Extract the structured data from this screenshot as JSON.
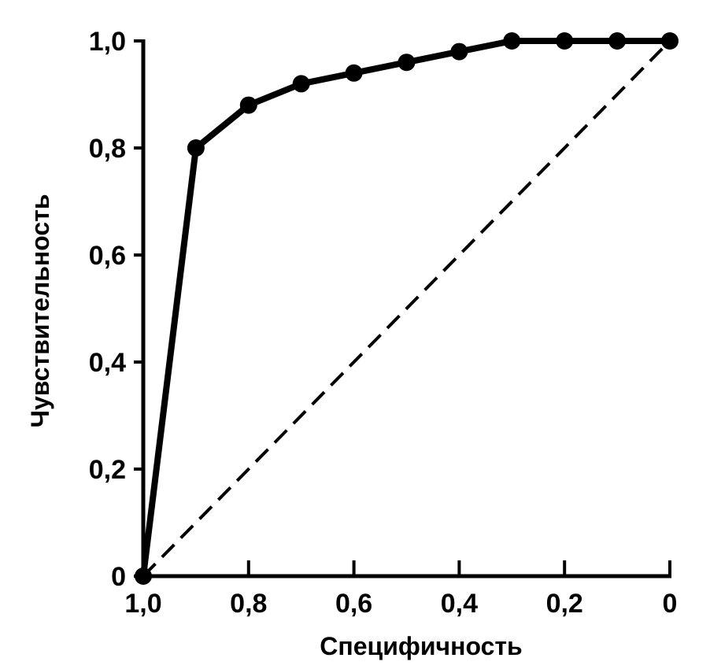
{
  "chart_data": {
    "type": "line",
    "title": "",
    "xlabel": "Специфичность",
    "ylabel": "Чувствительность",
    "xlim": [
      1.0,
      0.0
    ],
    "ylim": [
      0.0,
      1.0
    ],
    "x_reversed": true,
    "grid": false,
    "legend": "none",
    "x_ticks": [
      1.0,
      0.8,
      0.6,
      0.4,
      0.2,
      0.0
    ],
    "x_tick_labels": [
      "1,0",
      "0,8",
      "0,6",
      "0,4",
      "0,2",
      "0"
    ],
    "y_ticks": [
      0.0,
      0.2,
      0.4,
      0.6,
      0.8,
      1.0
    ],
    "y_tick_labels": [
      "0",
      "0,2",
      "0,4",
      "0,6",
      "0,8",
      "1,0"
    ],
    "series": [
      {
        "style": "solid-markers",
        "x": [
          1.0,
          0.9,
          0.8,
          0.7,
          0.6,
          0.5,
          0.4,
          0.3,
          0.2,
          0.1,
          0.0
        ],
        "y": [
          0.0,
          0.8,
          0.88,
          0.92,
          0.94,
          0.96,
          0.98,
          1.0,
          1.0,
          1.0,
          1.0
        ]
      },
      {
        "style": "dashed",
        "x": [
          1.0,
          0.0
        ],
        "y": [
          0.0,
          1.0
        ]
      }
    ],
    "colors": {
      "line": "#000000",
      "background": "#ffffff"
    }
  }
}
